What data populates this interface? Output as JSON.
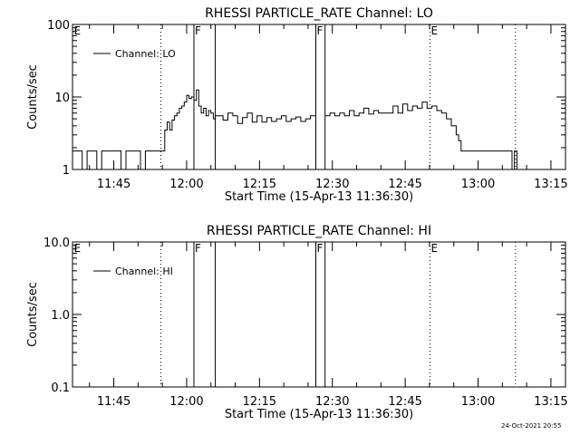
{
  "footer": {
    "timestamp": "24-Oct-2021 20:55"
  },
  "chart_data": [
    {
      "type": "line",
      "title": "RHESSI PARTICLE_RATE Channel: LO",
      "xlabel": "Start Time (15-Apr-13 11:36:30)",
      "ylabel": "Counts/sec",
      "yscale": "log",
      "ylim": [
        1,
        100
      ],
      "xlim_minutes": [
        696.5,
        798.0
      ],
      "yticks": [
        {
          "v": 1,
          "label": "1"
        },
        {
          "v": 10,
          "label": "10"
        },
        {
          "v": 100,
          "label": "100"
        }
      ],
      "xticks": [
        {
          "v": 705,
          "label": "11:45"
        },
        {
          "v": 720,
          "label": "12:00"
        },
        {
          "v": 735,
          "label": "12:15"
        },
        {
          "v": 750,
          "label": "12:30"
        },
        {
          "v": 765,
          "label": "12:45"
        },
        {
          "v": 780,
          "label": "13:00"
        },
        {
          "v": 795,
          "label": "13:15"
        }
      ],
      "legend": {
        "label": "Channel: LO",
        "placement": "top-left"
      },
      "markers": [
        {
          "x": 696.6,
          "label": "E",
          "style": "none"
        },
        {
          "x": 714.7,
          "label": "",
          "style": "dotted"
        },
        {
          "x": 721.5,
          "label": "F",
          "style": "solid"
        },
        {
          "x": 725.9,
          "label": "",
          "style": "solid"
        },
        {
          "x": 746.6,
          "label": "F",
          "style": "solid"
        },
        {
          "x": 748.5,
          "label": "",
          "style": "solid"
        },
        {
          "x": 770.1,
          "label": "E",
          "style": "dotted"
        },
        {
          "x": 787.7,
          "label": "",
          "style": "dotted"
        }
      ],
      "gaps": [
        [
          721.5,
          725.9
        ],
        [
          746.6,
          748.5
        ]
      ],
      "series": [
        {
          "x": [
            696.5,
            697.5,
            698.5,
            699.5,
            700.5,
            701.5,
            702.5,
            703.5,
            704.5,
            705.5,
            706.5,
            707.5,
            708.5,
            709.5,
            710.5,
            711.5,
            712.5,
            713.5,
            714.5,
            715.5,
            716.0,
            716.5,
            717.0,
            717.5,
            718.0,
            718.5,
            719.0,
            719.5,
            720.0,
            720.5,
            721.0,
            721.5,
            722.0,
            722.5,
            723.0,
            723.5,
            724.0,
            724.5,
            725.0,
            725.5,
            725.9,
            726.5,
            727.5,
            728.5,
            729.5,
            730.5,
            731.5,
            732.5,
            733.5,
            734.5,
            735.5,
            736.5,
            737.5,
            738.5,
            739.5,
            740.5,
            741.5,
            742.5,
            743.5,
            744.5,
            745.5,
            746.5,
            748.5,
            749.5,
            750.5,
            751.5,
            752.5,
            753.5,
            754.5,
            755.5,
            756.5,
            757.5,
            758.5,
            759.5,
            760.5,
            761.5,
            762.5,
            763.5,
            764.5,
            765.5,
            766.5,
            767.5,
            768.5,
            769.5,
            770.5,
            771.5,
            772.5,
            773.5,
            774.5,
            775.5,
            776.0,
            776.5,
            777.5,
            778.5,
            779.5,
            780.5,
            781.5,
            782.5,
            783.5,
            784.5,
            785.5,
            786.5,
            787.0,
            787.5,
            788.0
          ],
          "y": [
            1.8,
            1.8,
            1.0,
            1.8,
            1.8,
            1.0,
            1.8,
            1.8,
            1.8,
            1.8,
            1.0,
            1.8,
            1.8,
            1.8,
            1.0,
            1.8,
            1.8,
            1.8,
            1.8,
            3.5,
            4.5,
            3.5,
            4.8,
            5.5,
            6.0,
            7.0,
            7.5,
            8.5,
            10.5,
            9.5,
            10.0,
            9.0,
            12.5,
            7.5,
            6.0,
            7.0,
            5.5,
            6.5,
            6.0,
            5.0,
            5.5,
            5.5,
            4.8,
            6.0,
            5.5,
            4.3,
            5.2,
            6.0,
            4.5,
            5.5,
            4.5,
            5.2,
            4.6,
            5.0,
            5.5,
            4.6,
            5.0,
            5.3,
            4.6,
            5.0,
            5.5,
            5.5,
            5.5,
            6.0,
            5.5,
            6.0,
            5.5,
            6.5,
            5.5,
            6.0,
            7.0,
            5.8,
            6.5,
            6.0,
            6.0,
            6.0,
            7.5,
            6.0,
            8.0,
            6.5,
            7.5,
            7.0,
            8.5,
            7.0,
            7.5,
            6.5,
            6.0,
            5.0,
            4.0,
            3.0,
            2.5,
            1.8,
            1.8,
            1.8,
            1.8,
            1.8,
            1.8,
            1.8,
            1.8,
            1.8,
            1.8,
            1.8,
            1.0,
            1.8,
            1.0
          ]
        }
      ]
    },
    {
      "type": "line",
      "title": "RHESSI PARTICLE_RATE Channel: HI",
      "xlabel": "Start Time (15-Apr-13 11:36:30)",
      "ylabel": "Counts/sec",
      "yscale": "log",
      "ylim": [
        0.1,
        10
      ],
      "xlim_minutes": [
        696.5,
        798.0
      ],
      "yticks": [
        {
          "v": 0.1,
          "label": "0.1"
        },
        {
          "v": 1,
          "label": "1.0"
        },
        {
          "v": 10,
          "label": "10.0"
        }
      ],
      "xticks": [
        {
          "v": 705,
          "label": "11:45"
        },
        {
          "v": 720,
          "label": "12:00"
        },
        {
          "v": 735,
          "label": "12:15"
        },
        {
          "v": 750,
          "label": "12:30"
        },
        {
          "v": 765,
          "label": "12:45"
        },
        {
          "v": 780,
          "label": "13:00"
        },
        {
          "v": 795,
          "label": "13:15"
        }
      ],
      "legend": {
        "label": "Channel: HI",
        "placement": "top-left"
      },
      "markers": [
        {
          "x": 696.6,
          "label": "E",
          "style": "none"
        },
        {
          "x": 714.7,
          "label": "",
          "style": "dotted"
        },
        {
          "x": 721.5,
          "label": "F",
          "style": "solid"
        },
        {
          "x": 725.9,
          "label": "",
          "style": "solid"
        },
        {
          "x": 746.6,
          "label": "F",
          "style": "solid"
        },
        {
          "x": 748.5,
          "label": "",
          "style": "solid"
        },
        {
          "x": 770.1,
          "label": "E",
          "style": "dotted"
        },
        {
          "x": 787.7,
          "label": "",
          "style": "dotted"
        }
      ],
      "series": []
    }
  ]
}
